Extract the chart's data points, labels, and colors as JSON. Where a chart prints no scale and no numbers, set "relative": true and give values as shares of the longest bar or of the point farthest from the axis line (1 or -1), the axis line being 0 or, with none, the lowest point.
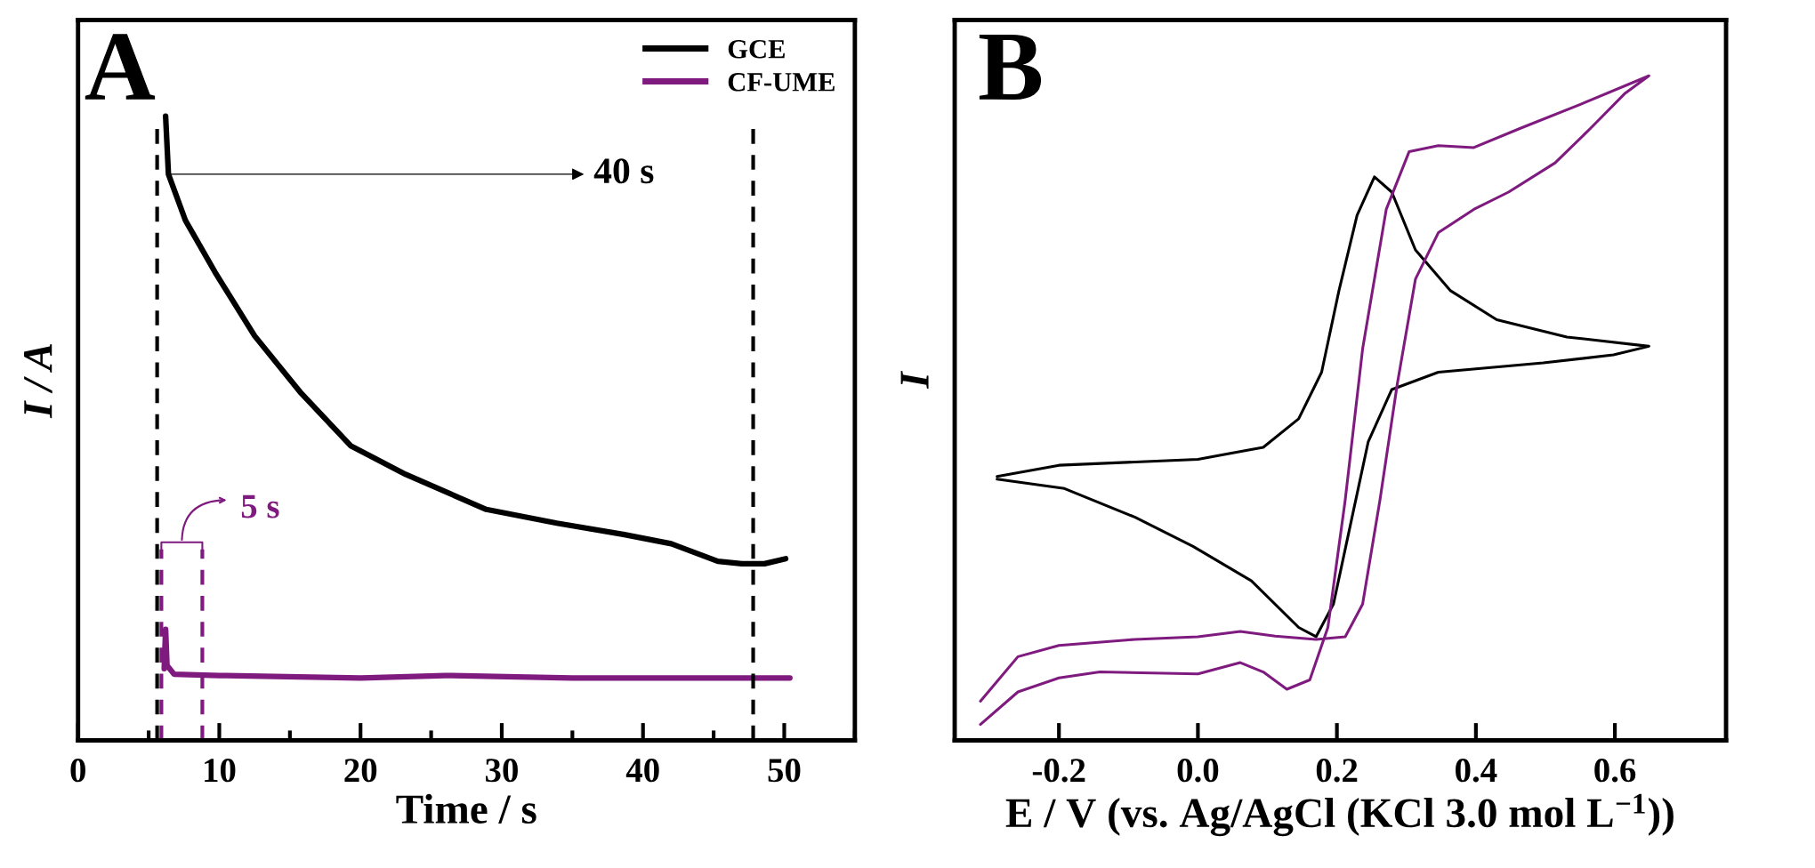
{
  "chart_data": [
    {
      "type": "line",
      "relative": true,
      "xlabel": "Time / s",
      "ylabel": "I / A",
      "xlim": [
        0,
        55
      ],
      "xticks": [
        0,
        {
          "value": 5,
          "label": null
        },
        10,
        {
          "value": 15,
          "label": null
        },
        20,
        {
          "value": 25,
          "label": null
        },
        30,
        {
          "value": 35,
          "label": null
        },
        40,
        {
          "value": 45,
          "label": null
        },
        50,
        {
          "value": 55,
          "label": null
        }
      ],
      "tick_labels": "x",
      "legend": "top right",
      "grid": false,
      "series": [
        {
          "name": "GCE",
          "color": "#000000",
          "x": [
            6.2,
            6.4,
            7.6,
            9.7,
            12.5,
            15.8,
            19.3,
            23.2,
            28.9,
            33.9,
            38.6,
            42,
            45.3,
            47,
            48.6,
            50.1
          ],
          "values": [
            1.0,
            0.907,
            0.833,
            0.75,
            0.648,
            0.556,
            0.472,
            0.426,
            0.37,
            0.348,
            0.33,
            0.315,
            0.287,
            0.283,
            0.283,
            0.291
          ]
        },
        {
          "name": "CF-UME",
          "color": "#7f1a7f",
          "x": [
            6.1,
            6.2,
            6.3,
            6.8,
            10,
            20,
            26,
            35,
            45,
            50.4
          ],
          "values": [
            0.115,
            0.178,
            0.12,
            0.106,
            0.104,
            0.1,
            0.104,
            0.1,
            0.1,
            0.1
          ]
        }
      ],
      "ref_lines": [
        {
          "axis": "x",
          "value": 5.6,
          "color": "#000000",
          "line_style": "dashed"
        },
        {
          "axis": "x",
          "value": 47.8,
          "color": "#000000",
          "line_style": "dashed"
        },
        {
          "axis": "x",
          "value": 5.9,
          "color": "#7f1a7f",
          "line_style": "dashed"
        },
        {
          "axis": "x",
          "value": 8.8,
          "color": "#7f1a7f",
          "line_style": "dashed"
        }
      ],
      "annotations": [
        "A",
        "40 s",
        "5 s"
      ]
    },
    {
      "type": "line",
      "relative": true,
      "xlabel": "E / V (vs. Ag/AgCl (KCl 3.0 mol L$^{−1}$))",
      "ylabel": "I",
      "xlim": [
        -0.35,
        0.76
      ],
      "xticks": [
        -0.2,
        {
          "value": 0,
          "label": "0.0"
        },
        0.2,
        0.4,
        0.6
      ],
      "tick_labels": "x",
      "grid": false,
      "series": [
        {
          "color": "#000000",
          "x": [
            -0.289,
            -0.2,
            0,
            0.094,
            0.145,
            0.178,
            0.203,
            0.229,
            0.254,
            0.279,
            0.313,
            0.363,
            0.43,
            0.531,
            0.649,
            0.598,
            0.497,
            0.346,
            0.279,
            0.245,
            0.22,
            0.195,
            0.17,
            0.145,
            0.077,
            -0.007,
            -0.091,
            -0.192,
            -0.289
          ],
          "values": [
            0.397,
            0.414,
            0.423,
            0.441,
            0.484,
            0.554,
            0.677,
            0.79,
            0.848,
            0.825,
            0.738,
            0.677,
            0.633,
            0.607,
            0.593,
            0.58,
            0.568,
            0.554,
            0.528,
            0.449,
            0.327,
            0.205,
            0.156,
            0.17,
            0.24,
            0.292,
            0.336,
            0.379,
            0.393
          ]
        },
        {
          "color": "#7f1a7f",
          "x": [
            -0.313,
            -0.259,
            -0.2,
            -0.141,
            0,
            0.061,
            0.094,
            0.128,
            0.161,
            0.187,
            0.212,
            0.237,
            0.271,
            0.304,
            0.346,
            0.397,
            0.464,
            0.548,
            0.649,
            0.615,
            0.565,
            0.514,
            0.447,
            0.397,
            0.346,
            0.313,
            0.287,
            0.262,
            0.237,
            0.212,
            0.17,
            0.111,
            0.061,
            0,
            -0.091,
            -0.2,
            -0.259,
            -0.313
          ],
          "values": [
            0.024,
            0.073,
            0.094,
            0.103,
            0.1,
            0.117,
            0.103,
            0.077,
            0.091,
            0.17,
            0.362,
            0.589,
            0.799,
            0.886,
            0.895,
            0.892,
            0.921,
            0.956,
            1.0,
            0.974,
            0.921,
            0.869,
            0.825,
            0.799,
            0.764,
            0.694,
            0.537,
            0.362,
            0.205,
            0.156,
            0.152,
            0.157,
            0.164,
            0.156,
            0.152,
            0.143,
            0.126,
            0.059
          ]
        }
      ],
      "annotations": [
        "B"
      ]
    }
  ]
}
